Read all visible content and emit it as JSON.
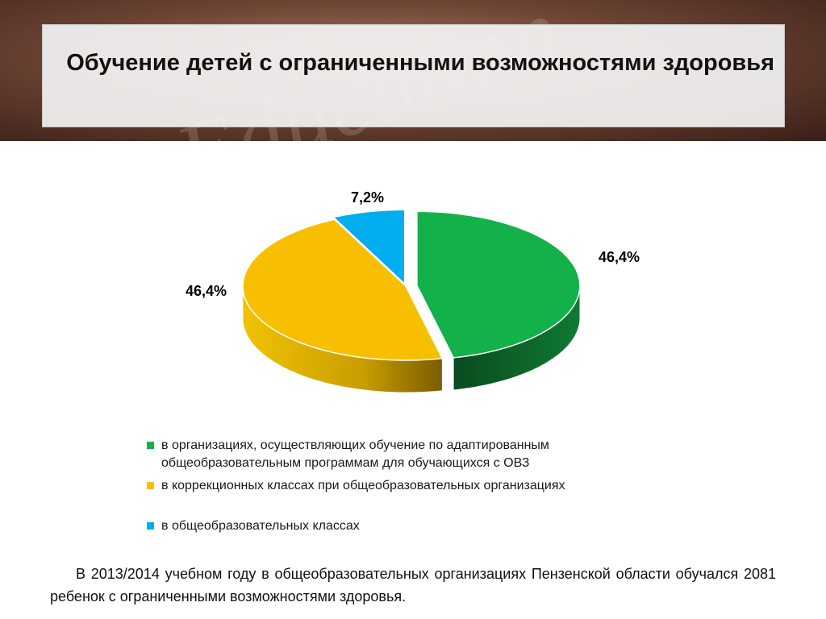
{
  "header": {
    "title": "Обучение детей с ограниченными возможностями здоровья",
    "background_decoration": "Education"
  },
  "chart_data": {
    "type": "pie",
    "style": "3d-exploded",
    "series": [
      {
        "name": "в организациях, осуществляющих обучение по адаптированным общеобразовательным программам для обучающихся с ОВЗ",
        "value": 46.4,
        "label": "46,4%",
        "color": "#13b14a"
      },
      {
        "name": "в коррекционных классах при общеобразовательных организациях",
        "value": 46.4,
        "label": "46,4%",
        "color": "#f8bf00"
      },
      {
        "name": "в общеобразовательных классах",
        "value": 7.2,
        "label": "7,2%",
        "color": "#00adee"
      }
    ],
    "legend_position": "bottom"
  },
  "legend": {
    "items": [
      {
        "label": "в организациях, осуществляющих обучение по адаптированным общеобразовательным программам для обучающихся с ОВЗ",
        "color": "#13b14a"
      },
      {
        "label": "в коррекционных классах при общеобразовательных организациях",
        "color": "#f8bf00"
      },
      {
        "label": "в общеобразовательных классах",
        "color": "#00adee"
      }
    ]
  },
  "footer": {
    "text": "В 2013/2014 учебном году в общеобразовательных организациях Пензенской области обучался 2081 ребенок с ограниченными возможностями здоровья."
  }
}
